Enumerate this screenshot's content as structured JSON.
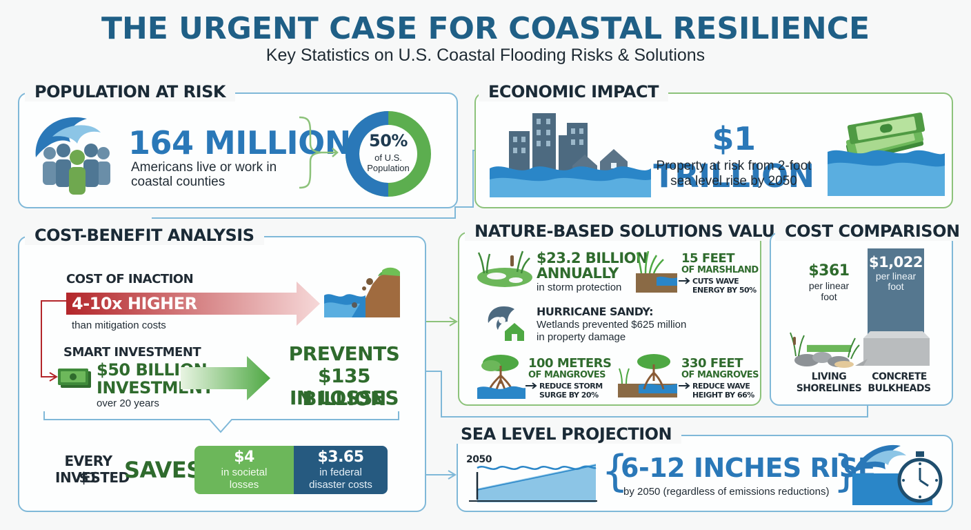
{
  "header": {
    "title": "THE URGENT CASE FOR COASTAL RESILIENCE",
    "subtitle": "Key Statistics on U.S. Coastal Flooding Risks & Solutions"
  },
  "population": {
    "heading": "POPULATION AT RISK",
    "big": "164 MILLION",
    "desc_line1": "Americans live or work in",
    "desc_line2": "coastal counties",
    "pct": "50%",
    "pct_line1": "of U.S.",
    "pct_line2": "Population",
    "pct_value": 50
  },
  "economic": {
    "heading": "ECONOMIC IMPACT",
    "big": "$1 TRILLION",
    "desc_line1": "Property at risk from 2-foot",
    "desc_line2": "sea level rise by 2050"
  },
  "cba": {
    "heading": "COST-BENEFIT ANALYSIS",
    "inaction_label": "COST OF INACTION",
    "inaction_value": "4-10x HIGHER",
    "inaction_note": "than mitigation costs",
    "smart_label": "SMART INVESTMENT",
    "invest_line1": "$50 BILLION",
    "invest_line2": "INVESTMENT",
    "invest_note": "over 20 years",
    "prevents_line1": "PREVENTS",
    "prevents_line2": "$135 BILLION",
    "prevents_line3": "IN LOSSES",
    "every_line1": "EVERY $1",
    "every_line2": "INVESTED",
    "saves": "SAVES",
    "box1_value": "$4",
    "box1_line1": "in societal",
    "box1_line2": "losses",
    "box2_value": "$3.65",
    "box2_line1": "in federal",
    "box2_line2": "disaster costs"
  },
  "nature": {
    "heading": "NATURE-BASED SOLUTIONS VALUE",
    "wet_line1": "$23.2 BILLION",
    "wet_line2": "ANNUALLY",
    "wet_note": "in storm protection",
    "marsh_line1": "15 FEET",
    "marsh_line2": "OF MARSHLAND",
    "marsh_line3": "CUTS WAVE",
    "marsh_line4": "ENERGY BY 50%",
    "sandy_title": "HURRICANE SANDY:",
    "sandy_line1": "Wetlands prevented $625 million",
    "sandy_line2": "in property damage",
    "m100_line1": "100 METERS",
    "m100_line2": "OF MANGROVES",
    "m100_line3": "REDUCE STORM",
    "m100_line4": "SURGE BY 20%",
    "m330_line1": "330 FEET",
    "m330_line2": "OF MANGROVES",
    "m330_line3": "REDUCE WAVE",
    "m330_line4": "HEIGHT BY 66%"
  },
  "costcomp": {
    "heading": "COST COMPARISON",
    "living_value": "$361",
    "living_unit1": "per linear",
    "living_unit2": "foot",
    "concrete_value": "$1,022",
    "concrete_unit1": "per linear",
    "concrete_unit2": "foot",
    "living_label1": "LIVING",
    "living_label2": "SHORELINES",
    "concrete_label1": "CONCRETE",
    "concrete_label2": "BULKHEADS"
  },
  "sealevel": {
    "heading": "SEA LEVEL PROJECTION",
    "year": "2050",
    "big": "6-12 INCHES RISE",
    "note": "by 2050 (regardless of emissions reductions)"
  },
  "colors": {
    "blue": "#2a78b8",
    "green": "#5cae4f",
    "dark_green": "#2f6b2d",
    "red": "#b3262a",
    "navy": "#1f4e6e"
  }
}
